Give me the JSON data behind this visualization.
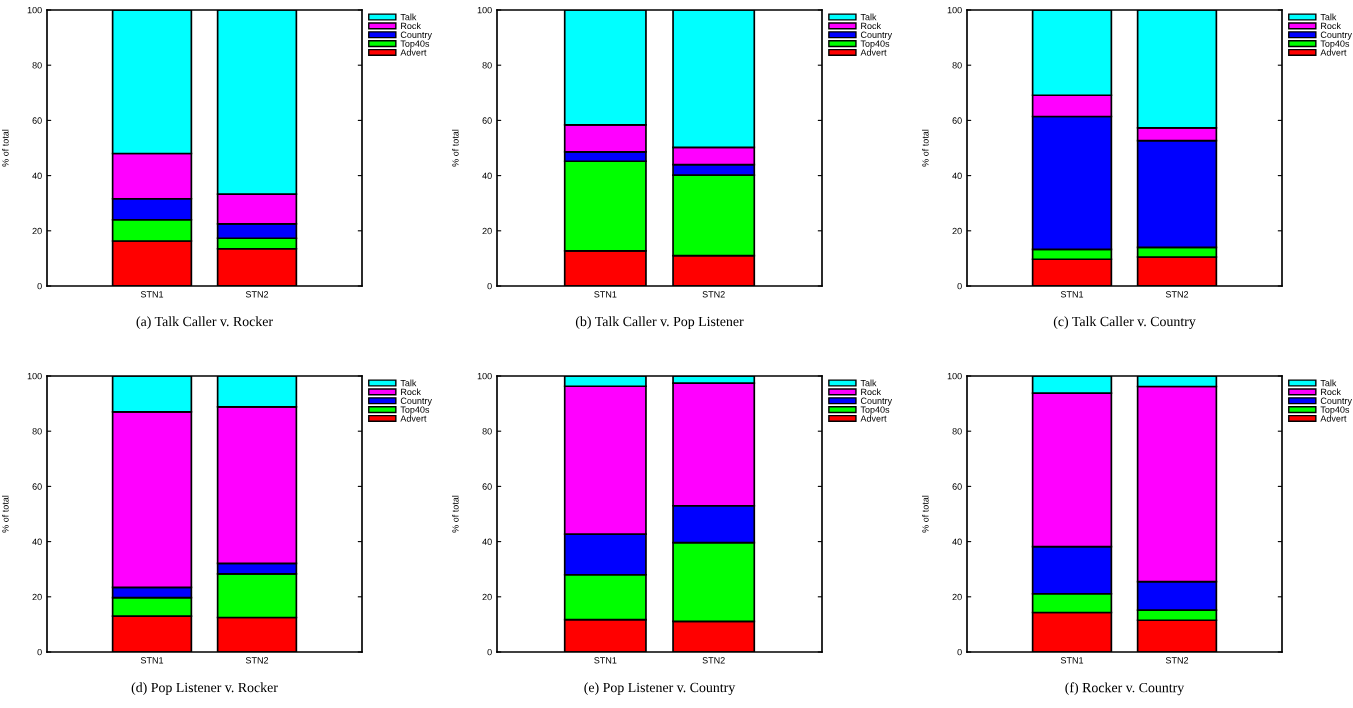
{
  "chart_data": [
    {
      "type": "bar",
      "stacked": true,
      "title": "(a) Talk Caller v. Rocker",
      "ylabel": "% of total",
      "categories": [
        "STN1",
        "STN2"
      ],
      "ylim": [
        0,
        100
      ],
      "yticks": [
        0,
        20,
        40,
        60,
        80,
        100
      ],
      "legend": "top right",
      "series": [
        {
          "name": "Advert",
          "color": "#ff0000",
          "values": [
            16.3,
            13.5
          ]
        },
        {
          "name": "Top40s",
          "color": "#00ff00",
          "values": [
            7.7,
            3.8
          ]
        },
        {
          "name": "Country",
          "color": "#0000ff",
          "values": [
            7.6,
            5.2
          ]
        },
        {
          "name": "Rock",
          "color": "#ff00ff",
          "values": [
            16.4,
            10.8
          ]
        },
        {
          "name": "Talk",
          "color": "#00ffff",
          "values": [
            52,
            66.7
          ]
        }
      ]
    },
    {
      "type": "bar",
      "stacked": true,
      "title": "(b) Talk Caller v. Pop Listener",
      "ylabel": "% of total",
      "categories": [
        "STN1",
        "STN2"
      ],
      "ylim": [
        0,
        100
      ],
      "yticks": [
        0,
        20,
        40,
        60,
        80,
        100
      ],
      "legend": "top right",
      "series": [
        {
          "name": "Advert",
          "color": "#ff0000",
          "values": [
            12.7,
            11
          ]
        },
        {
          "name": "Top40s",
          "color": "#00ff00",
          "values": [
            32.5,
            29.2
          ]
        },
        {
          "name": "Country",
          "color": "#0000ff",
          "values": [
            3.4,
            3.8
          ]
        },
        {
          "name": "Rock",
          "color": "#ff00ff",
          "values": [
            9.8,
            6.2
          ]
        },
        {
          "name": "Talk",
          "color": "#00ffff",
          "values": [
            41.6,
            49.8
          ]
        }
      ]
    },
    {
      "type": "bar",
      "stacked": true,
      "title": "(c) Talk Caller v. Country",
      "ylabel": "% of total",
      "categories": [
        "STN1",
        "STN2"
      ],
      "ylim": [
        0,
        100
      ],
      "yticks": [
        0,
        20,
        40,
        60,
        80,
        100
      ],
      "legend": "top right",
      "series": [
        {
          "name": "Advert",
          "color": "#ff0000",
          "values": [
            9.7,
            10.5
          ]
        },
        {
          "name": "Top40s",
          "color": "#00ff00",
          "values": [
            3.6,
            3.5
          ]
        },
        {
          "name": "Country",
          "color": "#0000ff",
          "values": [
            48.1,
            38.7
          ]
        },
        {
          "name": "Rock",
          "color": "#ff00ff",
          "values": [
            7.7,
            4.6
          ]
        },
        {
          "name": "Talk",
          "color": "#00ffff",
          "values": [
            30.9,
            42.7
          ]
        }
      ]
    },
    {
      "type": "bar",
      "stacked": true,
      "title": "(d) Pop Listener v. Rocker",
      "ylabel": "% of total",
      "categories": [
        "STN1",
        "STN2"
      ],
      "ylim": [
        0,
        100
      ],
      "yticks": [
        0,
        20,
        40,
        60,
        80,
        100
      ],
      "legend": "top right",
      "series": [
        {
          "name": "Advert",
          "color": "#ff0000",
          "values": [
            13,
            12.5
          ]
        },
        {
          "name": "Top40s",
          "color": "#00ff00",
          "values": [
            6.7,
            15.8
          ]
        },
        {
          "name": "Country",
          "color": "#0000ff",
          "values": [
            3.7,
            3.8
          ]
        },
        {
          "name": "Rock",
          "color": "#ff00ff",
          "values": [
            63.6,
            56.7
          ]
        },
        {
          "name": "Talk",
          "color": "#00ffff",
          "values": [
            13,
            11.2
          ]
        }
      ]
    },
    {
      "type": "bar",
      "stacked": true,
      "title": "(e) Pop Listener v. Country",
      "ylabel": "% of total",
      "categories": [
        "STN1",
        "STN2"
      ],
      "ylim": [
        0,
        100
      ],
      "yticks": [
        0,
        20,
        40,
        60,
        80,
        100
      ],
      "legend": "top right",
      "series": [
        {
          "name": "Advert",
          "color": "#ff0000",
          "values": [
            11.7,
            11.1
          ]
        },
        {
          "name": "Top40s",
          "color": "#00ff00",
          "values": [
            16.3,
            28.5
          ]
        },
        {
          "name": "Country",
          "color": "#0000ff",
          "values": [
            14.7,
            13.4
          ]
        },
        {
          "name": "Rock",
          "color": "#ff00ff",
          "values": [
            53.6,
            44.4
          ]
        },
        {
          "name": "Talk",
          "color": "#00ffff",
          "values": [
            3.7,
            2.6
          ]
        }
      ]
    },
    {
      "type": "bar",
      "stacked": true,
      "title": "(f) Rocker v. Country",
      "ylabel": "% of total",
      "categories": [
        "STN1",
        "STN2"
      ],
      "ylim": [
        0,
        100
      ],
      "yticks": [
        0,
        20,
        40,
        60,
        80,
        100
      ],
      "legend": "top right",
      "series": [
        {
          "name": "Advert",
          "color": "#ff0000",
          "values": [
            14.3,
            11.5
          ]
        },
        {
          "name": "Top40s",
          "color": "#00ff00",
          "values": [
            6.8,
            3.7
          ]
        },
        {
          "name": "Country",
          "color": "#0000ff",
          "values": [
            17.1,
            10.3
          ]
        },
        {
          "name": "Rock",
          "color": "#ff00ff",
          "values": [
            55.6,
            70.7
          ]
        },
        {
          "name": "Talk",
          "color": "#00ffff",
          "values": [
            6.2,
            3.8
          ]
        }
      ]
    }
  ]
}
